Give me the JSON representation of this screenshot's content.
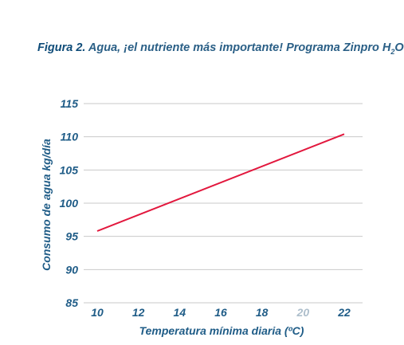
{
  "figure": {
    "label": "Figura 2.",
    "caption_main": " Agua, ¡el nutriente más importante! Programa Zinpro H",
    "caption_sub": "2",
    "caption_end": "O"
  },
  "chart_data": {
    "type": "line",
    "title": "Figura 2. Agua, ¡el nutriente más importante! Programa Zinpro H2O",
    "xlabel": "Temperatura mínima diaria (ºC)",
    "ylabel": "Consumo de agua kg/día",
    "x_ticks": [
      "10",
      "12",
      "14",
      "16",
      "18",
      "20",
      "22"
    ],
    "faded_x_tick": "20",
    "y_ticks": [
      "85",
      "90",
      "95",
      "100",
      "105",
      "110",
      "115"
    ],
    "xlim": [
      10,
      22
    ],
    "ylim": [
      85,
      115
    ],
    "grid": true,
    "series": [
      {
        "x": [
          10,
          22
        ],
        "y": [
          95.8,
          110.4
        ]
      }
    ],
    "colors": {
      "line": "#e2173d",
      "text": "#1f5c87",
      "faded_tick": "#aebfcc",
      "grid": "#c9c9c9"
    }
  }
}
